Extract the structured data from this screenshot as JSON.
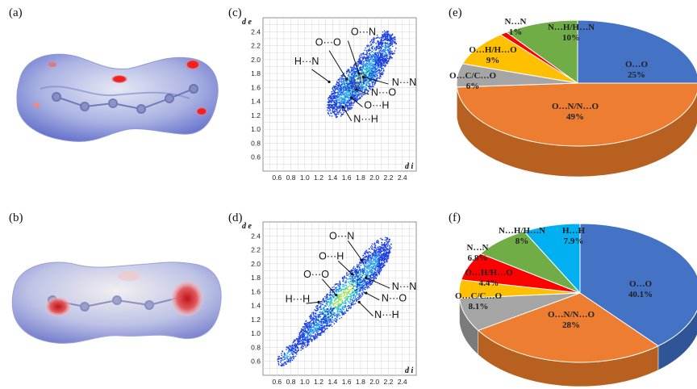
{
  "panel_labels": {
    "a": "(a)",
    "b": "(b)",
    "c": "(c)",
    "d": "(d)",
    "e": "(e)",
    "f": "(f)"
  },
  "surfaces": {
    "a": {
      "surface_color": "#b8bfe6",
      "spot_color": "#e8262a"
    },
    "b": {
      "surface_color": "#c7cbe8",
      "spot_color": "#d9353a"
    }
  },
  "chart_data": [
    {
      "id": "c",
      "type": "scatter",
      "title": "",
      "xlabel": "d i",
      "ylabel": "d e",
      "xlim": [
        0.4,
        2.6
      ],
      "ylim": [
        0.4,
        2.6
      ],
      "x_ticks": [
        "0.6",
        "0.8",
        "1.0",
        "1.2",
        "1.4",
        "1.6",
        "1.8",
        "2.0",
        "2.2",
        "2.4"
      ],
      "y_ticks": [
        "0.6",
        "0.8",
        "1.0",
        "1.2",
        "1.4",
        "1.6",
        "1.8",
        "2.0",
        "2.2",
        "2.4"
      ],
      "grid": true,
      "annotations": [
        {
          "text": "O···N",
          "x": 1.66,
          "y": 2.35
        },
        {
          "text": "O···O",
          "x": 1.15,
          "y": 2.2
        },
        {
          "text": "H···N",
          "x": 0.85,
          "y": 1.93
        },
        {
          "text": "N···N",
          "x": 2.25,
          "y": 1.63
        },
        {
          "text": "N···O",
          "x": 1.95,
          "y": 1.48
        },
        {
          "text": "O···H",
          "x": 1.85,
          "y": 1.3
        },
        {
          "text": "N···H",
          "x": 1.7,
          "y": 1.1
        }
      ],
      "arrows": [
        {
          "from": [
            1.62,
            2.27
          ],
          "to": [
            1.78,
            1.8
          ]
        },
        {
          "from": [
            1.35,
            2.13
          ],
          "to": [
            1.6,
            1.72
          ]
        },
        {
          "from": [
            1.1,
            1.86
          ],
          "to": [
            1.35,
            1.68
          ]
        },
        {
          "from": [
            2.2,
            1.65
          ],
          "to": [
            1.84,
            1.75
          ]
        },
        {
          "from": [
            1.92,
            1.5
          ],
          "to": [
            1.74,
            1.57
          ]
        },
        {
          "from": [
            1.83,
            1.32
          ],
          "to": [
            1.67,
            1.45
          ]
        },
        {
          "from": [
            1.67,
            1.12
          ],
          "to": [
            1.55,
            1.32
          ]
        }
      ]
    },
    {
      "id": "d",
      "type": "scatter",
      "title": "",
      "xlabel": "d i",
      "ylabel": "d e",
      "xlim": [
        0.4,
        2.6
      ],
      "ylim": [
        0.4,
        2.6
      ],
      "x_ticks": [
        "0.6",
        "0.8",
        "1.0",
        "1.2",
        "1.4",
        "1.6",
        "1.8",
        "2.0",
        "2.2",
        "2.4"
      ],
      "y_ticks": [
        "0.6",
        "0.8",
        "1.0",
        "1.2",
        "1.4",
        "1.6",
        "1.8",
        "2.0",
        "2.2",
        "2.4"
      ],
      "grid": true,
      "annotations": [
        {
          "text": "O···N",
          "x": 1.35,
          "y": 2.35
        },
        {
          "text": "O···H",
          "x": 1.2,
          "y": 2.06
        },
        {
          "text": "O···O",
          "x": 0.98,
          "y": 1.8
        },
        {
          "text": "H···H",
          "x": 0.72,
          "y": 1.45
        },
        {
          "text": "N···N",
          "x": 2.25,
          "y": 1.63
        },
        {
          "text": "N···O",
          "x": 2.1,
          "y": 1.46
        },
        {
          "text": "N···H",
          "x": 2.0,
          "y": 1.22
        }
      ],
      "arrows": [
        {
          "from": [
            1.62,
            2.33
          ],
          "to": [
            1.82,
            2.05
          ]
        },
        {
          "from": [
            1.48,
            2.04
          ],
          "to": [
            1.68,
            1.85
          ]
        },
        {
          "from": [
            1.25,
            1.78
          ],
          "to": [
            1.45,
            1.55
          ]
        },
        {
          "from": [
            1.02,
            1.43
          ],
          "to": [
            1.2,
            1.45
          ]
        },
        {
          "from": [
            2.22,
            1.65
          ],
          "to": [
            1.88,
            1.8
          ]
        },
        {
          "from": [
            2.07,
            1.48
          ],
          "to": [
            1.88,
            1.58
          ]
        },
        {
          "from": [
            1.98,
            1.25
          ],
          "to": [
            1.78,
            1.45
          ]
        }
      ]
    },
    {
      "id": "e",
      "type": "pie",
      "title": "",
      "slices": [
        {
          "label": "O…O",
          "value_label": "25%",
          "value": 25,
          "color": "#4472c4",
          "side": "#2f5597"
        },
        {
          "label": "O…N/N…O",
          "value_label": "49%",
          "value": 49,
          "color": "#ed7d31",
          "side": "#b8601f"
        },
        {
          "label": "O…C/C…O",
          "value_label": "6%",
          "value": 6,
          "color": "#a5a5a5",
          "side": "#7b7b7b"
        },
        {
          "label": "O…H/H…O",
          "value_label": "9%",
          "value": 9,
          "color": "#ffc000",
          "side": "#c29100"
        },
        {
          "label": "N…N",
          "value_label": "1%",
          "value": 1,
          "color": "#ff0000",
          "side": "#b00000"
        },
        {
          "label": "N…H/H…N",
          "value_label": "10%",
          "value": 10,
          "color": "#70ad47",
          "side": "#4e7f30"
        }
      ]
    },
    {
      "id": "f",
      "type": "pie",
      "title": "",
      "slices": [
        {
          "label": "O…O",
          "value_label": "40.1%",
          "value": 40.1,
          "color": "#4472c4",
          "side": "#2f5597"
        },
        {
          "label": "O…N/N…O",
          "value_label": "28%",
          "value": 28,
          "color": "#ed7d31",
          "side": "#b8601f"
        },
        {
          "label": "O…C/C…O",
          "value_label": "8.1%",
          "value": 8.1,
          "color": "#a5a5a5",
          "side": "#7b7b7b"
        },
        {
          "label": "O…H/H…O",
          "value_label": "4.4%",
          "value": 4.4,
          "color": "#ffc000",
          "side": "#c29100"
        },
        {
          "label": "N…N",
          "value_label": "6.8%",
          "value": 6.8,
          "color": "#ff0000",
          "side": "#b00000"
        },
        {
          "label": "N…H/H…N",
          "value_label": "8%",
          "value": 8,
          "color": "#70ad47",
          "side": "#4e7f30"
        },
        {
          "label": "H…H",
          "value_label": "7.9%",
          "value": 7.9,
          "color": "#00b0f0",
          "side": "#0082b3"
        }
      ]
    }
  ]
}
